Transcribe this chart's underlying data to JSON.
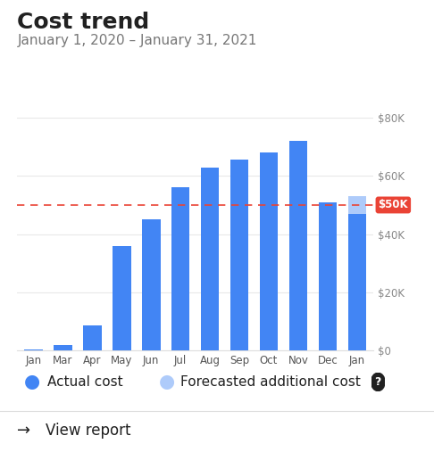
{
  "title": "Cost trend",
  "subtitle": "January 1, 2020 – January 31, 2021",
  "months": [
    "Jan",
    "Mar",
    "Apr",
    "May",
    "Jun",
    "Jul",
    "Aug",
    "Sep",
    "Oct",
    "Nov",
    "Dec",
    "Jan"
  ],
  "actual_values": [
    300,
    1800,
    8500,
    36000,
    45000,
    56000,
    63000,
    65500,
    68000,
    72000,
    51000,
    47000
  ],
  "forecast_values": [
    0,
    0,
    0,
    0,
    0,
    0,
    0,
    0,
    0,
    0,
    0,
    6000
  ],
  "budget_line": 50000,
  "ylim": [
    0,
    84000
  ],
  "yticks": [
    0,
    20000,
    40000,
    60000,
    80000
  ],
  "ytick_labels": [
    "$0",
    "$20K",
    "$40K",
    "$60K",
    "$80K"
  ],
  "bar_color": "#4285F4",
  "forecast_color": "#AECBFA",
  "budget_line_color": "#EA4335",
  "budget_label": "$50K",
  "background_color": "#ffffff",
  "title_fontsize": 18,
  "subtitle_fontsize": 11,
  "legend_fontsize": 11
}
